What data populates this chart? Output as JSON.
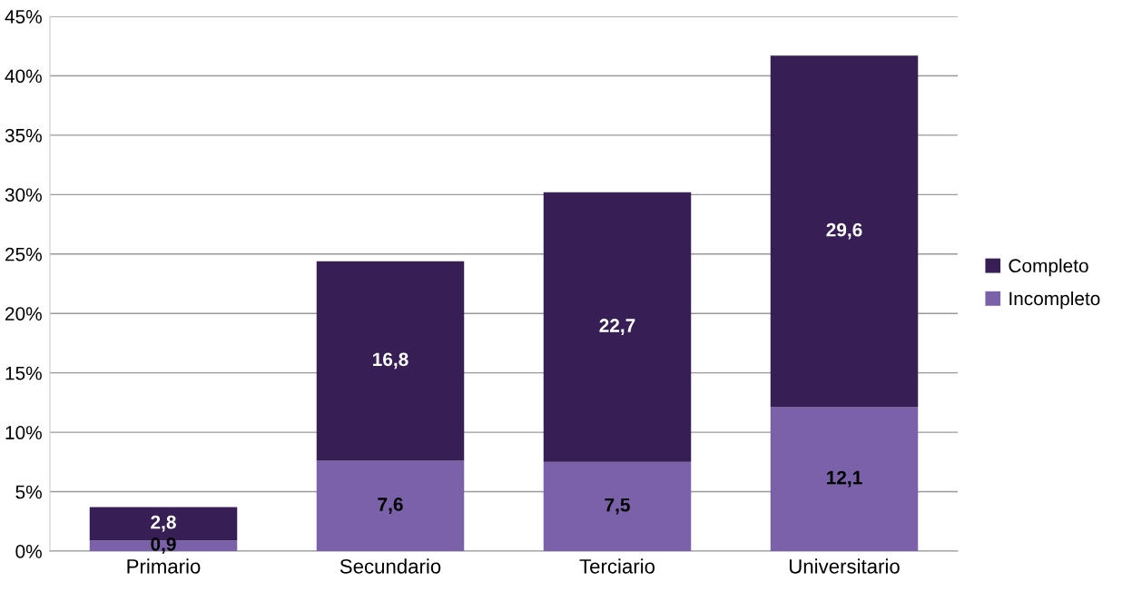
{
  "chart_data": {
    "type": "bar",
    "stacked": true,
    "categories": [
      "Primario",
      "Secundario",
      "Terciario",
      "Universitario"
    ],
    "series": [
      {
        "name": "Incompleto",
        "color": "#7a61aa",
        "values": [
          0.9,
          7.6,
          7.5,
          12.1
        ],
        "value_labels": [
          "0,9",
          "7,6",
          "7,5",
          "12,1"
        ]
      },
      {
        "name": "Completo",
        "color": "#371f55",
        "values": [
          2.8,
          16.8,
          22.7,
          29.6
        ],
        "value_labels": [
          "2,8",
          "16,8",
          "22,7",
          "29,6"
        ]
      }
    ],
    "ylim": [
      0,
      45
    ],
    "yticks": [
      {
        "value": 0,
        "label": "0%"
      },
      {
        "value": 5,
        "label": "5%"
      },
      {
        "value": 10,
        "label": "10%"
      },
      {
        "value": 15,
        "label": "15%"
      },
      {
        "value": 20,
        "label": "20%"
      },
      {
        "value": 25,
        "label": "25%"
      },
      {
        "value": 30,
        "label": "30%"
      },
      {
        "value": 35,
        "label": "35%"
      },
      {
        "value": 40,
        "label": "40%"
      },
      {
        "value": 45,
        "label": "45%"
      }
    ],
    "grid": "y",
    "legend": "right"
  }
}
